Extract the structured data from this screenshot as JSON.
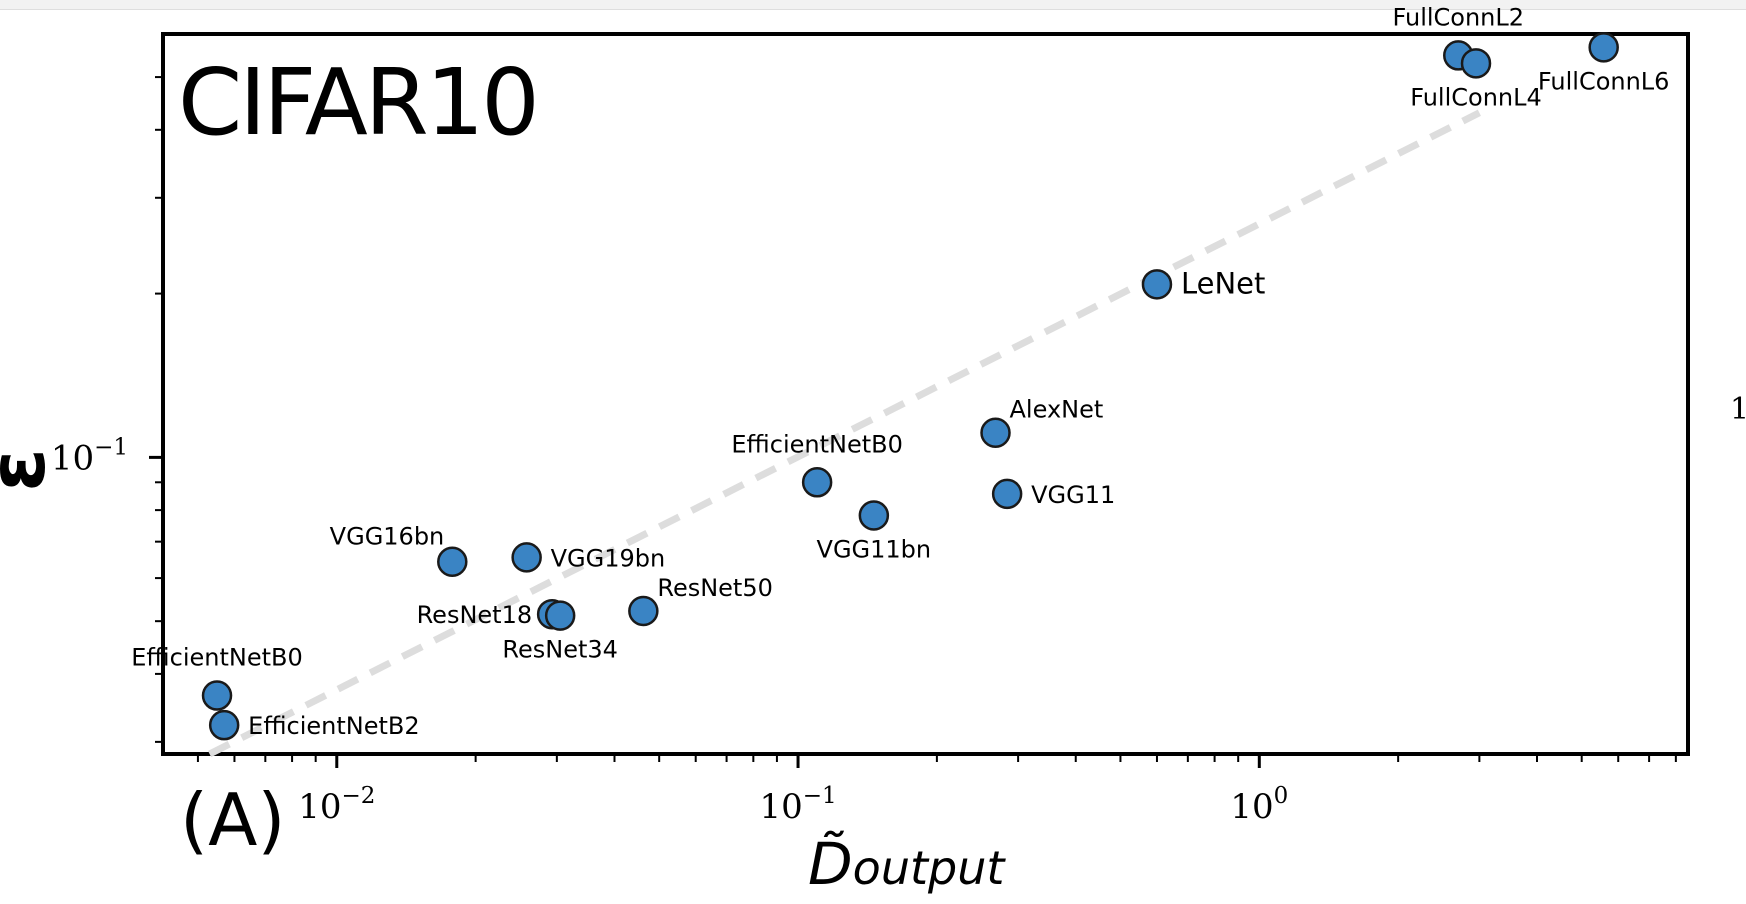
{
  "chart_data": {
    "type": "scatter",
    "title": "CIFAR10",
    "panel_label": "(A)",
    "xlabel": "D̃",
    "xlabel_subscript": "output",
    "ylabel": "ε",
    "xscale": "log",
    "yscale": "log",
    "xlim": [
      0.0042,
      8.5
    ],
    "ylim": [
      0.0285,
      0.6
    ],
    "x_tick_labels": [
      {
        "value": 0.01,
        "base": "10",
        "exp": "−2"
      },
      {
        "value": 0.1,
        "base": "10",
        "exp": "−1"
      },
      {
        "value": 1,
        "base": "10",
        "exp": "0"
      }
    ],
    "y_tick_labels": [
      {
        "value": 0.1,
        "base": "10",
        "exp": "−1"
      }
    ],
    "right_edge_text": "1",
    "fit_line": {
      "x": [
        0.0053,
        3.0
      ],
      "y": [
        0.0285,
        0.43
      ],
      "color": "#dddddd",
      "style": "dashed"
    },
    "point_color": "#3a84c4",
    "points": [
      {
        "label": "EfficientNetB0",
        "x": 0.0055,
        "y": 0.0365,
        "label_pos": "above"
      },
      {
        "label": "EfficientNetB2",
        "x": 0.0057,
        "y": 0.0322,
        "label_pos": "right"
      },
      {
        "label": "VGG16bn",
        "x": 0.0178,
        "y": 0.0643,
        "label_pos": "upper-left"
      },
      {
        "label": "VGG19bn",
        "x": 0.0258,
        "y": 0.0655,
        "label_pos": "right"
      },
      {
        "label": "ResNet18",
        "x": 0.0293,
        "y": 0.0515,
        "label_pos": "left"
      },
      {
        "label": "ResNet34",
        "x": 0.0305,
        "y": 0.0512,
        "label_pos": "below"
      },
      {
        "label": "ResNet50",
        "x": 0.0462,
        "y": 0.0522,
        "label_pos": "upper-right"
      },
      {
        "label": "EfficientNetB0",
        "x": 0.11,
        "y": 0.09,
        "label_pos": "above"
      },
      {
        "label": "VGG11bn",
        "x": 0.146,
        "y": 0.0782,
        "label_pos": "below"
      },
      {
        "label": "AlexNet",
        "x": 0.268,
        "y": 0.111,
        "label_pos": "upper-right"
      },
      {
        "label": "VGG11",
        "x": 0.284,
        "y": 0.0857,
        "label_pos": "right"
      },
      {
        "label": "LeNet",
        "x": 0.6,
        "y": 0.208,
        "label_pos": "right"
      },
      {
        "label": "FullConnL2",
        "x": 2.7,
        "y": 0.548,
        "label_pos": "above"
      },
      {
        "label": "FullConnL4",
        "x": 2.95,
        "y": 0.53,
        "label_pos": "below"
      },
      {
        "label": "FullConnL6",
        "x": 5.58,
        "y": 0.567,
        "label_pos": "below"
      }
    ]
  }
}
